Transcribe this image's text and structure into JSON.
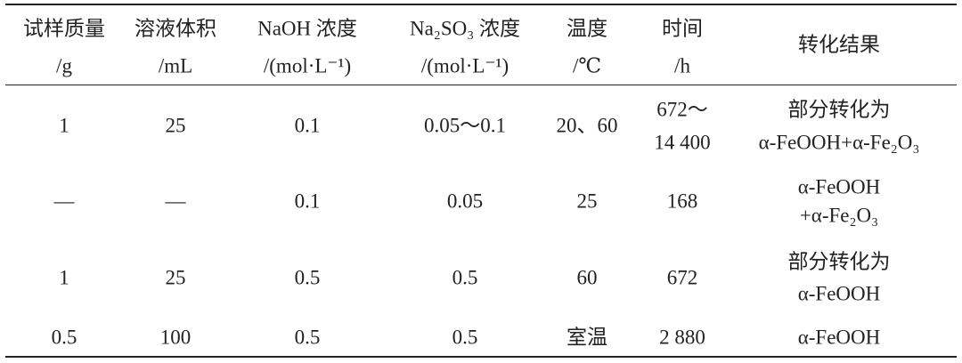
{
  "table": {
    "header": [
      [
        "试样质量",
        "/g"
      ],
      [
        "溶液体积",
        "/mL"
      ],
      [
        "NaOH 浓度",
        "/(mol·L⁻¹)"
      ],
      [
        "Na₂SO₃ 浓度",
        "/(mol·L⁻¹)"
      ],
      [
        "温度",
        "/℃"
      ],
      [
        "时间",
        "/h"
      ],
      [
        "转化结果"
      ]
    ],
    "rows": [
      [
        [
          "1"
        ],
        [
          "25"
        ],
        [
          "0.1"
        ],
        [
          "0.05～0.1"
        ],
        [
          "20、60"
        ],
        [
          "672～",
          "14 400"
        ],
        [
          "部分转化为",
          "α-FeOOH+α-Fe₂O₃"
        ]
      ],
      [
        [
          "—"
        ],
        [
          "—"
        ],
        [
          "0.1"
        ],
        [
          "0.05"
        ],
        [
          "25"
        ],
        [
          "168"
        ],
        [
          "α-FeOOH",
          "+α-Fe₂O₃"
        ]
      ],
      [
        [
          "1"
        ],
        [
          "25"
        ],
        [
          "0.5"
        ],
        [
          "0.5"
        ],
        [
          "60"
        ],
        [
          "672"
        ],
        [
          "部分转化为",
          "α-FeOOH"
        ]
      ],
      [
        [
          "0.5"
        ],
        [
          "100"
        ],
        [
          "0.5"
        ],
        [
          "0.5"
        ],
        [
          "室温"
        ],
        [
          "2 880"
        ],
        [
          "α-FeOOH"
        ]
      ]
    ]
  }
}
